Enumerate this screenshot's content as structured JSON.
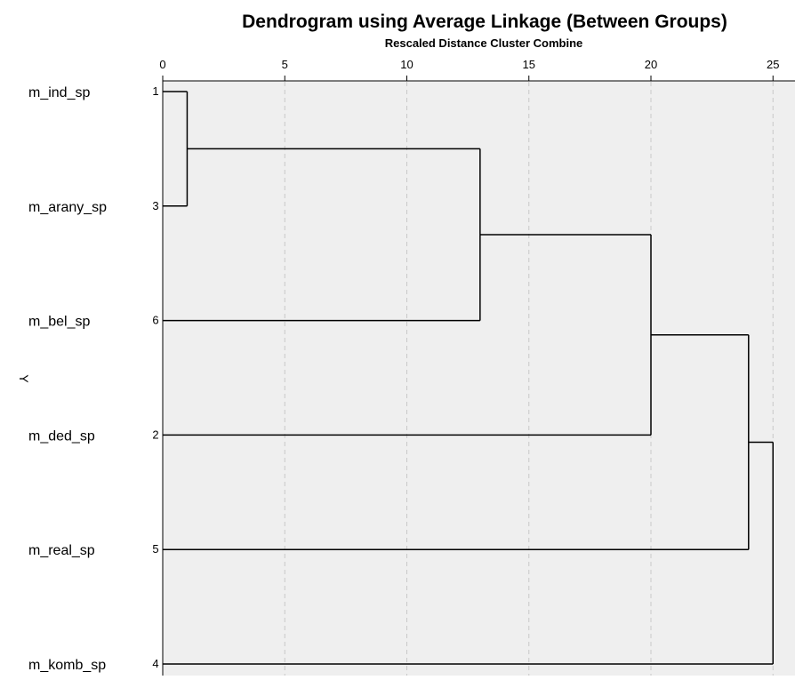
{
  "chart_data": {
    "type": "dendrogram",
    "title": "Dendrogram using Average Linkage (Between Groups)",
    "subtitle": "Rescaled Distance Cluster Combine",
    "ylabel": "Y",
    "xlim": [
      0,
      25
    ],
    "x_ticks": [
      "0",
      "5",
      "10",
      "15",
      "20",
      "25"
    ],
    "grid": true,
    "leaves": [
      {
        "label": "m_ind_sp",
        "case": "1"
      },
      {
        "label": "m_arany_sp",
        "case": "3"
      },
      {
        "label": "m_bel_sp",
        "case": "6"
      },
      {
        "label": "m_ded_sp",
        "case": "2"
      },
      {
        "label": "m_real_sp",
        "case": "5"
      },
      {
        "label": "m_komb_sp",
        "case": "4"
      }
    ],
    "merges": [
      {
        "left": "leaf:0",
        "right": "leaf:1",
        "distance": 1
      },
      {
        "left": "node:0",
        "right": "leaf:2",
        "distance": 13
      },
      {
        "left": "node:1",
        "right": "leaf:3",
        "distance": 20
      },
      {
        "left": "node:2",
        "right": "leaf:4",
        "distance": 24
      },
      {
        "left": "node:3",
        "right": "leaf:5",
        "distance": 25
      }
    ],
    "colors": {
      "plot_background": "#efefef",
      "line": "#000000",
      "grid": "#c8c8c8"
    }
  }
}
